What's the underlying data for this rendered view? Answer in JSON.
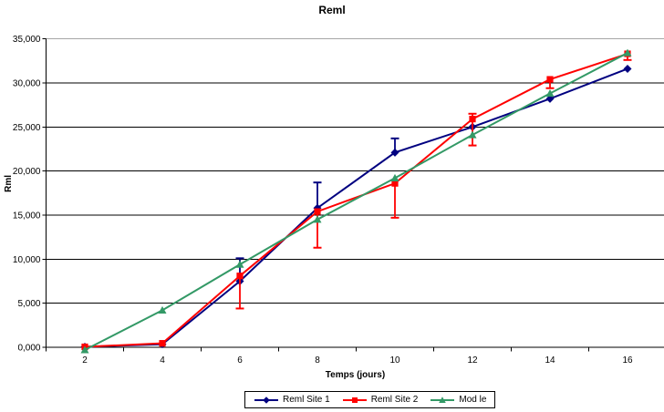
{
  "chart_data": {
    "type": "line",
    "title": "Reml",
    "xlabel": "Temps (jours)",
    "ylabel": "Rml",
    "x": [
      2,
      4,
      6,
      8,
      10,
      12,
      14,
      16
    ],
    "x_tick_labels": [
      "2",
      "4",
      "6",
      "8",
      "10",
      "12",
      "14",
      "16"
    ],
    "y_tick_labels": [
      "0,000",
      "5,000",
      "10,000",
      "15,000",
      "20,000",
      "25,000",
      "30,000",
      "35,000"
    ],
    "y_tick_step": 5000,
    "ylim": [
      0,
      35000
    ],
    "grid": true,
    "legend_position": "bottom",
    "gridline_color": "#000000",
    "top_gridline_color": "#a6a6a6",
    "series": [
      {
        "name": "Reml Site 1",
        "color": "#000080",
        "marker": "diamond",
        "values": [
          50,
          350,
          7500,
          15800,
          22100,
          25000,
          28200,
          31600
        ]
      },
      {
        "name": "Reml Site 2",
        "color": "#ff0000",
        "marker": "square",
        "values": [
          50,
          450,
          8100,
          15400,
          18600,
          25900,
          30400,
          33300
        ]
      },
      {
        "name": "Mod le",
        "color": "#339966",
        "marker": "triangle",
        "values": [
          -300,
          4200,
          9400,
          14500,
          19200,
          24100,
          28800,
          33400
        ]
      }
    ],
    "error_bars": [
      {
        "series": "Reml Site 1",
        "x": 6,
        "to": 10100
      },
      {
        "series": "Reml Site 1",
        "x": 8,
        "to": 18700
      },
      {
        "series": "Reml Site 1",
        "x": 10,
        "to": 23700
      },
      {
        "series": "Reml Site 2",
        "x": 6,
        "to": 4400
      },
      {
        "series": "Reml Site 2",
        "x": 8,
        "to": 11300
      },
      {
        "series": "Reml Site 2",
        "x": 10,
        "to": 14700
      },
      {
        "series": "Reml Site 2",
        "x": 12,
        "to": 22900
      },
      {
        "series": "Reml Site 2",
        "x": 12,
        "to": 26500
      },
      {
        "series": "Reml Site 2",
        "x": 14,
        "to": 29400
      },
      {
        "series": "Reml Site 2",
        "x": 16,
        "to": 32600
      }
    ]
  }
}
